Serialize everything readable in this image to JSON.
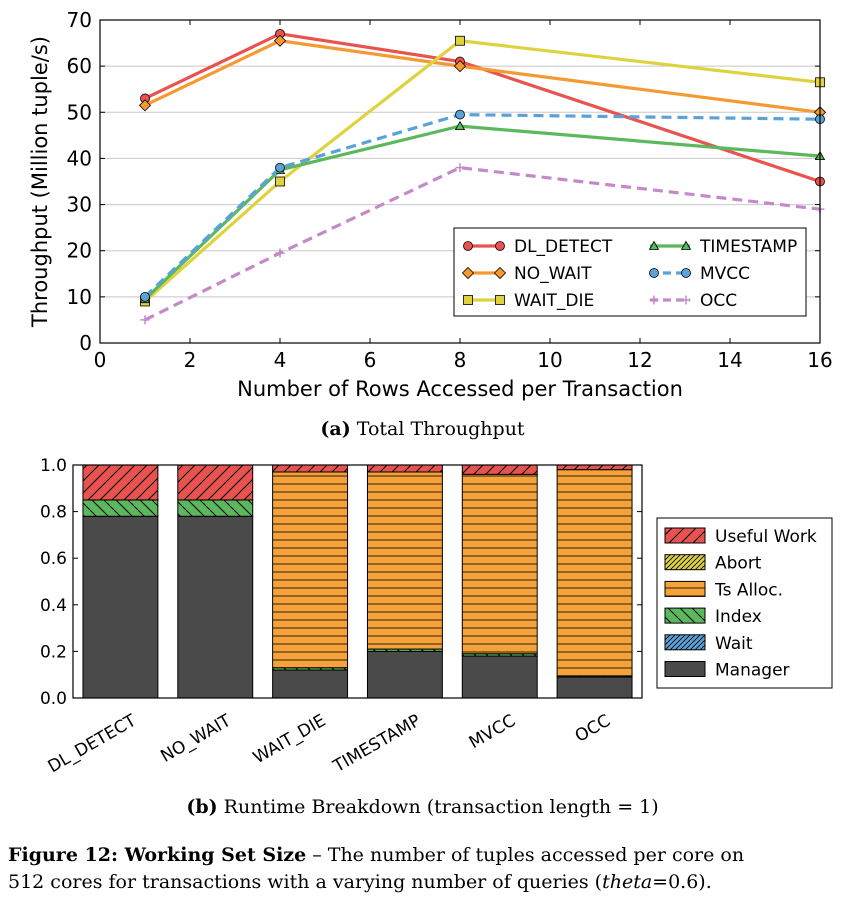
{
  "chart_data": [
    {
      "type": "line",
      "panel": "a",
      "x": [
        1,
        4,
        8,
        16
      ],
      "xlabel": "Number of Rows Accessed per Transaction",
      "ylabel": "Throughput (Million tuple/s)",
      "xlim": [
        0,
        16
      ],
      "ylim": [
        0,
        70
      ],
      "xticks": [
        "0",
        "2",
        "4",
        "6",
        "8",
        "10",
        "12",
        "14",
        "16"
      ],
      "yticks": [
        "0",
        "10",
        "20",
        "30",
        "40",
        "50",
        "60",
        "70"
      ],
      "grid": true,
      "legend": "lower-right",
      "series": [
        {
          "name": "DL_DETECT",
          "values": [
            53,
            67,
            61,
            35
          ],
          "color": "#e8534f",
          "marker": "circle",
          "dash": "solid"
        },
        {
          "name": "NO_WAIT",
          "values": [
            51.5,
            65.5,
            60,
            50
          ],
          "color": "#f59a33",
          "marker": "diamond",
          "dash": "solid"
        },
        {
          "name": "WAIT_DIE",
          "values": [
            9,
            35,
            65.5,
            56.5
          ],
          "color": "#dfd23f",
          "marker": "square",
          "dash": "solid"
        },
        {
          "name": "TIMESTAMP",
          "values": [
            9.5,
            37.5,
            47,
            40.5
          ],
          "color": "#5cb85c",
          "marker": "triangle",
          "dash": "solid"
        },
        {
          "name": "MVCC",
          "values": [
            10,
            38,
            49.5,
            48.5
          ],
          "color": "#5aa2d8",
          "marker": "circle",
          "dash": "dashed"
        },
        {
          "name": "OCC",
          "values": [
            5,
            19.5,
            38,
            29
          ],
          "color": "#c48ac8",
          "marker": "plus",
          "dash": "dashed"
        }
      ]
    },
    {
      "type": "bar",
      "panel": "b",
      "stacked": true,
      "categories": [
        "DL_DETECT",
        "NO_WAIT",
        "WAIT_DIE",
        "TIMESTAMP",
        "MVCC",
        "OCC"
      ],
      "ylim": [
        0,
        1
      ],
      "yticks": [
        "0.0",
        "0.2",
        "0.4",
        "0.6",
        "0.8",
        "1.0"
      ],
      "legend": "right",
      "series": [
        {
          "name": "Manager",
          "values": [
            0.78,
            0.78,
            0.12,
            0.2,
            0.18,
            0.09
          ],
          "color": "#4a4a4a",
          "pattern": "none"
        },
        {
          "name": "Wait",
          "values": [
            0,
            0,
            0,
            0,
            0,
            0
          ],
          "color": "#5aa2d8",
          "pattern": "hatch-dense"
        },
        {
          "name": "Index",
          "values": [
            0.07,
            0.07,
            0.01,
            0.01,
            0.01,
            0.005
          ],
          "color": "#5cb85c",
          "pattern": "hatch-back"
        },
        {
          "name": "Ts Alloc.",
          "values": [
            0,
            0,
            0.84,
            0.76,
            0.77,
            0.885
          ],
          "color": "#f5a23a",
          "pattern": "horizontal"
        },
        {
          "name": "Abort",
          "values": [
            0,
            0,
            0,
            0,
            0,
            0
          ],
          "color": "#dfd23f",
          "pattern": "hatch-dense"
        },
        {
          "name": "Useful Work",
          "values": [
            0.15,
            0.15,
            0.03,
            0.03,
            0.04,
            0.02
          ],
          "color": "#e8534f",
          "pattern": "hatch-forward"
        }
      ],
      "legend_order": [
        "Useful Work",
        "Abort",
        "Ts Alloc.",
        "Index",
        "Wait",
        "Manager"
      ]
    }
  ],
  "captions": {
    "a_label": "(a)",
    "a_text": "Total Throughput",
    "b_label": "(b)",
    "b_text": "Runtime Breakdown (transaction length = 1)",
    "fig_label": "Figure 12: Working Set Size",
    "fig_text_1": " – The number of tuples accessed per core on",
    "fig_text_2a": "512 cores for transactions with a varying number of queries (",
    "fig_theta": "theta",
    "fig_text_2b": "=0.6)."
  }
}
